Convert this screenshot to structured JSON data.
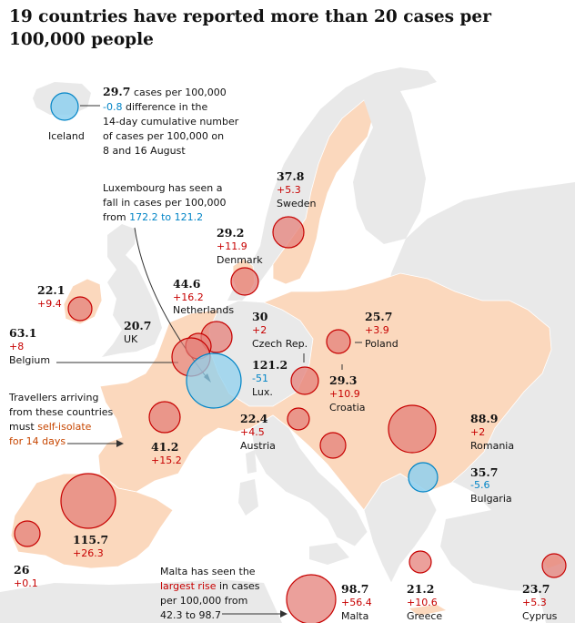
{
  "title": "19 countries have reported more than 20 cases per 100,000 people",
  "colors": {
    "land_reported": "#fbd8bd",
    "land_other": "#e9e9e9",
    "sea": "#ffffff",
    "circle_increase_fill": "#e4807a",
    "circle_increase_stroke": "#c70000",
    "circle_decrease_fill": "#8fd0ee",
    "circle_decrease_stroke": "#0084c6"
  },
  "countries": [
    {
      "id": "iceland",
      "name": "Iceland",
      "cases": "29.7",
      "change": "-0.8"
    },
    {
      "id": "sweden",
      "name": "Sweden",
      "cases": "37.8",
      "change": "+5.3"
    },
    {
      "id": "denmark",
      "name": "Denmark",
      "cases": "29.2",
      "change": "+11.9"
    },
    {
      "id": "ireland",
      "name": "",
      "cases": "22.1",
      "change": "+9.4"
    },
    {
      "id": "netherlands",
      "name": "Netherlands",
      "cases": "44.6",
      "change": "+16.2"
    },
    {
      "id": "uk",
      "name": "UK",
      "cases": "20.7",
      "change": ""
    },
    {
      "id": "belgium",
      "name": "Belgium",
      "cases": "63.1",
      "change": "+8"
    },
    {
      "id": "czech",
      "name": "Czech Rep.",
      "cases": "30",
      "change": "+2"
    },
    {
      "id": "poland",
      "name": "Poland",
      "cases": "25.7",
      "change": "+3.9"
    },
    {
      "id": "luxembourg",
      "name": "Lux.",
      "cases": "121.2",
      "change": "-51"
    },
    {
      "id": "croatia",
      "name": "Croatia",
      "cases": "29.3",
      "change": "+10.9"
    },
    {
      "id": "austria",
      "name": "Austria",
      "cases": "22.4",
      "change": "+4.5"
    },
    {
      "id": "france",
      "name": "",
      "cases": "41.2",
      "change": "+15.2"
    },
    {
      "id": "romania",
      "name": "Romania",
      "cases": "88.9",
      "change": "+2"
    },
    {
      "id": "bulgaria",
      "name": "Bulgaria",
      "cases": "35.7",
      "change": "-5.6"
    },
    {
      "id": "spain",
      "name": "",
      "cases": "115.7",
      "change": "+26.3"
    },
    {
      "id": "portugal",
      "name": "",
      "cases": "26",
      "change": "+0.1"
    },
    {
      "id": "malta",
      "name": "Malta",
      "cases": "98.7",
      "change": "+56.4"
    },
    {
      "id": "greece",
      "name": "Greece",
      "cases": "21.2",
      "change": "+10.6"
    },
    {
      "id": "cyprus",
      "name": "Cyprus",
      "cases": "23.7",
      "change": "+5.3"
    }
  ],
  "annotations": {
    "iceland_key": {
      "cases_suffix": "cases per 100,000",
      "change_suffix": "difference in the",
      "line3": "14-day cumulative number",
      "line4": "of cases per 100,000 on",
      "line5": "8 and 16 August"
    },
    "luxembourg": {
      "line1": "Luxembourg has seen a",
      "line2": "fall in cases per 100,000",
      "line3_prefix": "from",
      "line3_highlight": "172.2 to 121.2"
    },
    "travel": {
      "line1": "Travellers arriving",
      "line2": "from these countries",
      "line3_prefix": "must",
      "line3_highlight": "self-isolate",
      "line4_highlight": "for 14 days"
    },
    "malta": {
      "line1": "Malta has seen the",
      "line2_highlight": "largest rise",
      "line2_suffix": "in cases",
      "line3": "per 100,000 from",
      "line4": "42.3 to 98.7"
    }
  }
}
